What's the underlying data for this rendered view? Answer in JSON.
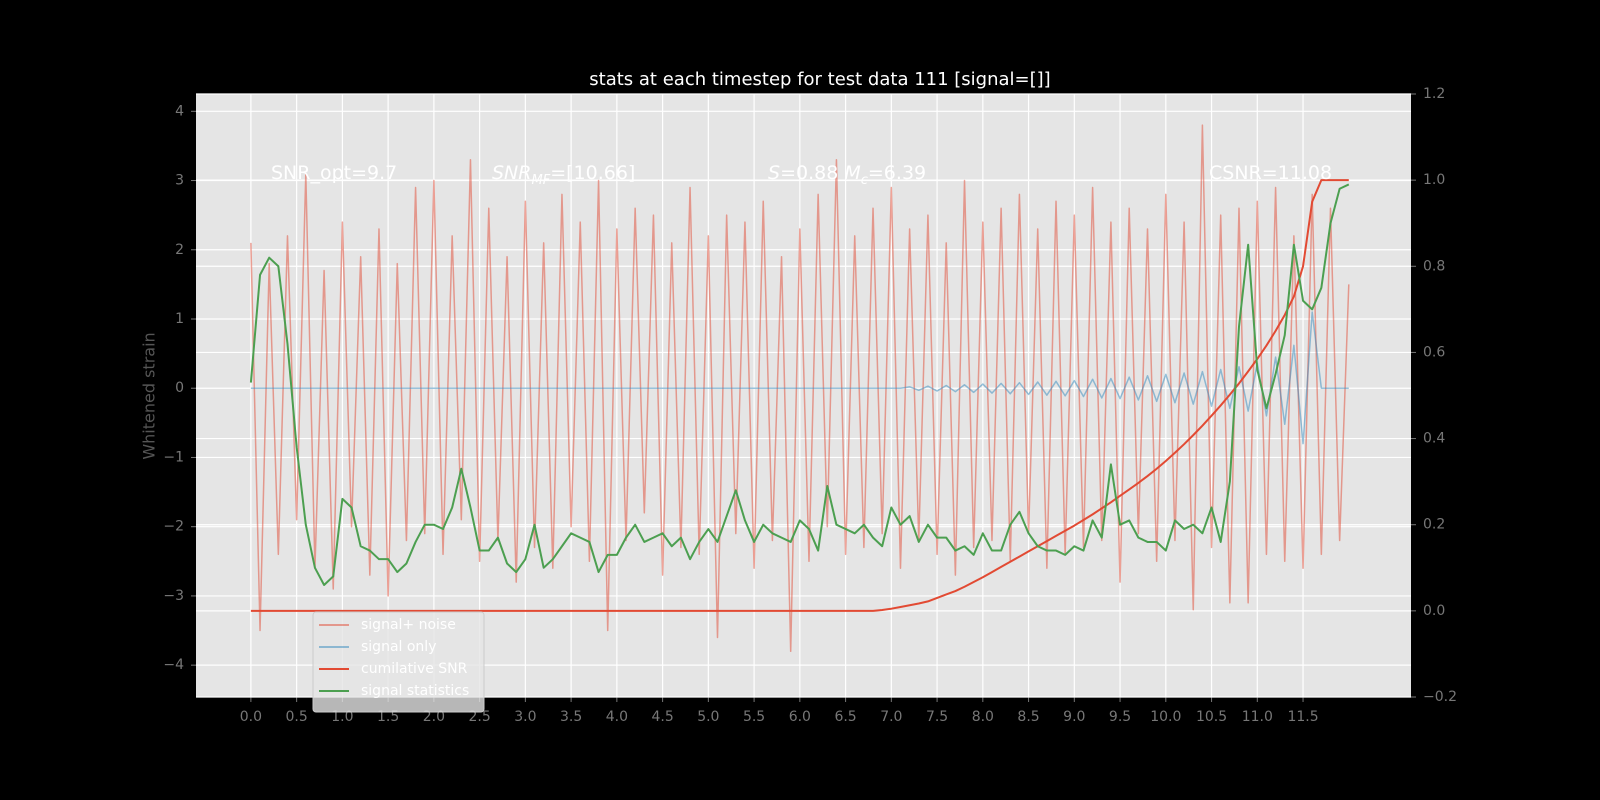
{
  "chart_data": {
    "type": "line",
    "title": "stats at each timestep for test data 111 [signal=[]]",
    "y_label": "Whitened strain",
    "annotations": [
      [
        {
          "text": "SNR_opt=9.7"
        }
      ],
      [
        {
          "text": "SNR",
          "italic": true
        },
        {
          "text": "MF",
          "italic": true,
          "sub": true
        },
        {
          "text": "=[10.66]"
        }
      ],
      [
        {
          "text": "S",
          "italic": true
        },
        {
          "text": "=0.88  "
        },
        {
          "text": "M",
          "italic": true
        },
        {
          "text": "c",
          "italic": true,
          "sub": true
        },
        {
          "text": "=6.39"
        }
      ],
      [
        {
          "text": "CSNR=11.08"
        }
      ]
    ],
    "x": [
      0,
      0.1,
      0.2,
      0.3,
      0.4,
      0.5,
      0.6,
      0.7,
      0.8,
      0.9,
      1,
      1.1,
      1.2,
      1.3,
      1.4,
      1.5,
      1.6,
      1.7,
      1.8,
      1.9,
      2,
      2.1,
      2.2,
      2.3,
      2.4,
      2.5,
      2.6,
      2.7,
      2.8,
      2.9,
      3,
      3.1,
      3.2,
      3.3,
      3.4,
      3.5,
      3.6,
      3.7,
      3.8,
      3.9,
      4,
      4.1,
      4.2,
      4.3,
      4.4,
      4.5,
      4.6,
      4.7,
      4.8,
      4.9,
      5,
      5.1,
      5.2,
      5.3,
      5.4,
      5.5,
      5.6,
      5.7,
      5.8,
      5.9,
      6,
      6.1,
      6.2,
      6.3,
      6.4,
      6.5,
      6.6,
      6.7,
      6.8,
      6.9,
      7,
      7.1,
      7.2,
      7.3,
      7.4,
      7.5,
      7.6,
      7.7,
      7.8,
      7.9,
      8,
      8.1,
      8.2,
      8.3,
      8.4,
      8.5,
      8.6,
      8.7,
      8.8,
      8.9,
      9,
      9.1,
      9.2,
      9.3,
      9.4,
      9.5,
      9.6,
      9.7,
      9.8,
      9.9,
      10,
      10.1,
      10.2,
      10.3,
      10.4,
      10.5,
      10.6,
      10.7,
      10.8,
      10.9,
      11,
      11.1,
      11.2,
      11.3,
      11.4,
      11.5,
      11.6,
      11.7,
      11.8,
      11.9,
      12
    ],
    "series": [
      {
        "name": "signal+ noise",
        "color": "#E24A33",
        "opacity": 0.5,
        "values": [
          2.1,
          -3.5,
          1.8,
          -2.4,
          2.2,
          -1.9,
          3.1,
          -2.6,
          1.7,
          -2.9,
          2.4,
          -2.0,
          1.9,
          -2.7,
          2.3,
          -3.0,
          1.8,
          -2.2,
          2.9,
          -2.1,
          3.0,
          -2.4,
          2.2,
          -1.9,
          3.3,
          -2.5,
          2.6,
          -2.2,
          1.9,
          -2.8,
          2.7,
          -2.3,
          2.1,
          -2.6,
          2.8,
          -2.0,
          2.4,
          -2.5,
          3.0,
          -3.5,
          2.3,
          -2.2,
          2.6,
          -1.8,
          2.5,
          -2.7,
          2.1,
          -2.3,
          2.9,
          -2.4,
          2.2,
          -3.6,
          2.5,
          -2.1,
          2.4,
          -2.6,
          2.7,
          -2.2,
          1.9,
          -3.8,
          2.3,
          -2.5,
          2.8,
          -2.0,
          3.3,
          -2.4,
          2.2,
          -2.3,
          2.6,
          -2.1,
          2.9,
          -2.6,
          2.3,
          -2.2,
          2.5,
          -2.4,
          2.1,
          -2.7,
          3.0,
          -2.3,
          2.4,
          -2.2,
          2.6,
          -2.5,
          2.8,
          -2.1,
          2.3,
          -2.6,
          2.7,
          -2.4,
          2.5,
          -2.3,
          2.9,
          -2.2,
          2.4,
          -2.8,
          2.6,
          -2.1,
          2.3,
          -2.5,
          2.8,
          -2.2,
          2.4,
          -3.2,
          3.8,
          -2.3,
          2.5,
          -3.1,
          2.6,
          -3.1,
          2.7,
          -2.4,
          2.9,
          -2.5,
          2.2,
          -2.6,
          2.8,
          -2.4,
          2.6,
          -2.2,
          1.5
        ]
      },
      {
        "name": "signal only",
        "color": "#348ABD",
        "opacity": 0.5,
        "values": [
          0,
          0,
          0,
          0,
          0,
          0,
          0,
          0,
          0,
          0,
          0,
          0,
          0,
          0,
          0,
          0,
          0,
          0,
          0,
          0,
          0,
          0,
          0,
          0,
          0,
          0,
          0,
          0,
          0,
          0,
          0,
          0,
          0,
          0,
          0,
          0,
          0,
          0,
          0,
          0,
          0,
          0,
          0,
          0,
          0,
          0,
          0,
          0,
          0,
          0,
          0,
          0,
          0,
          0,
          0,
          0,
          0,
          0,
          0,
          0,
          0,
          0,
          0,
          0,
          0,
          0,
          0,
          0,
          0,
          0,
          0,
          0,
          0.02,
          -0.03,
          0.03,
          -0.04,
          0.04,
          -0.05,
          0.05,
          -0.06,
          0.06,
          -0.07,
          0.07,
          -0.08,
          0.08,
          -0.09,
          0.09,
          -0.1,
          0.1,
          -0.11,
          0.11,
          -0.12,
          0.13,
          -0.14,
          0.14,
          -0.15,
          0.16,
          -0.17,
          0.18,
          -0.19,
          0.2,
          -0.21,
          0.22,
          -0.23,
          0.24,
          -0.26,
          0.27,
          -0.29,
          0.31,
          -0.33,
          0.36,
          -0.4,
          0.45,
          -0.52,
          0.62,
          -0.8,
          1.1,
          0,
          0,
          0,
          0
        ]
      },
      {
        "name": "cumilative SNR",
        "color": "#E24A33",
        "opacity": 1,
        "axis": "y2",
        "values": [
          0,
          0,
          0,
          0,
          0,
          0,
          0,
          0,
          0,
          0,
          0,
          0,
          0,
          0,
          0,
          0,
          0,
          0,
          0,
          0,
          0,
          0,
          0,
          0,
          0,
          0,
          0,
          0,
          0,
          0,
          0,
          0,
          0,
          0,
          0,
          0,
          0,
          0,
          0,
          0,
          0,
          0,
          0,
          0,
          0,
          0,
          0,
          0,
          0,
          0,
          0,
          0,
          0,
          0,
          0,
          0,
          0,
          0,
          0,
          0,
          0,
          0,
          0,
          0,
          0,
          0,
          0,
          0,
          0,
          0.002,
          0.005,
          0.009,
          0.013,
          0.017,
          0.022,
          0.03,
          0.038,
          0.046,
          0.056,
          0.067,
          0.078,
          0.09,
          0.102,
          0.114,
          0.126,
          0.138,
          0.15,
          0.162,
          0.174,
          0.186,
          0.198,
          0.211,
          0.224,
          0.238,
          0.252,
          0.267,
          0.282,
          0.297,
          0.313,
          0.33,
          0.348,
          0.367,
          0.387,
          0.408,
          0.43,
          0.453,
          0.477,
          0.502,
          0.528,
          0.556,
          0.585,
          0.616,
          0.65,
          0.687,
          0.73,
          0.8,
          0.95,
          1.0,
          1.0,
          1.0,
          1.0
        ]
      },
      {
        "name": "signal statistics",
        "color": "#4c9f50",
        "opacity": 1,
        "axis": "y2",
        "values": [
          0.53,
          0.78,
          0.82,
          0.8,
          0.62,
          0.38,
          0.2,
          0.1,
          0.06,
          0.08,
          0.26,
          0.24,
          0.15,
          0.14,
          0.12,
          0.12,
          0.09,
          0.11,
          0.16,
          0.2,
          0.2,
          0.19,
          0.24,
          0.33,
          0.24,
          0.14,
          0.14,
          0.17,
          0.11,
          0.09,
          0.12,
          0.2,
          0.1,
          0.12,
          0.15,
          0.18,
          0.17,
          0.16,
          0.09,
          0.13,
          0.13,
          0.17,
          0.2,
          0.16,
          0.17,
          0.18,
          0.15,
          0.17,
          0.12,
          0.16,
          0.19,
          0.16,
          0.22,
          0.28,
          0.21,
          0.16,
          0.2,
          0.18,
          0.17,
          0.16,
          0.21,
          0.19,
          0.14,
          0.29,
          0.2,
          0.19,
          0.18,
          0.2,
          0.17,
          0.15,
          0.24,
          0.2,
          0.22,
          0.16,
          0.2,
          0.17,
          0.17,
          0.14,
          0.15,
          0.13,
          0.18,
          0.14,
          0.14,
          0.2,
          0.23,
          0.18,
          0.15,
          0.14,
          0.14,
          0.13,
          0.15,
          0.14,
          0.21,
          0.17,
          0.34,
          0.2,
          0.21,
          0.17,
          0.16,
          0.16,
          0.14,
          0.21,
          0.19,
          0.2,
          0.18,
          0.24,
          0.16,
          0.3,
          0.66,
          0.85,
          0.56,
          0.47,
          0.55,
          0.64,
          0.85,
          0.72,
          0.7,
          0.75,
          0.9,
          0.98,
          0.99
        ]
      }
    ],
    "xlim": [
      -0.6,
      12.68
    ],
    "ylim": [
      -4.46,
      4.25
    ],
    "y2lim": [
      -0.2,
      1.2
    ],
    "xticks": [
      {
        "value": 0,
        "label": "0.0"
      },
      0.5,
      {
        "value": 1,
        "label": "1.0"
      },
      1.5,
      {
        "value": 2,
        "label": "2.0"
      },
      2.5,
      {
        "value": 3,
        "label": "3.0"
      },
      3.5,
      {
        "value": 4,
        "label": "4.0"
      },
      4.5,
      {
        "value": 5,
        "label": "5.0"
      },
      5.5,
      {
        "value": 6,
        "label": "6.0"
      },
      6.5,
      {
        "value": 7,
        "label": "7.0"
      },
      7.5,
      {
        "value": 8,
        "label": "8.0"
      },
      8.5,
      {
        "value": 9,
        "label": "9.0"
      },
      9.5,
      {
        "value": 10,
        "label": "10.0"
      },
      10.5,
      {
        "value": 11,
        "label": "11.0"
      },
      11.5
    ],
    "yticks": [
      {
        "value": -4,
        "label": "−4"
      },
      {
        "value": -3,
        "label": "−3"
      },
      {
        "value": -2,
        "label": "−2"
      },
      {
        "value": -1,
        "label": "−1"
      },
      0,
      1,
      2,
      3,
      4
    ],
    "y2ticks": [
      {
        "value": -0.2,
        "label": "−0.2"
      },
      {
        "value": 0,
        "label": "0.0"
      },
      0.2,
      0.4,
      0.6,
      0.8,
      {
        "value": 1,
        "label": "1.0"
      },
      1.2
    ],
    "grid": true,
    "legend": "lower left"
  }
}
